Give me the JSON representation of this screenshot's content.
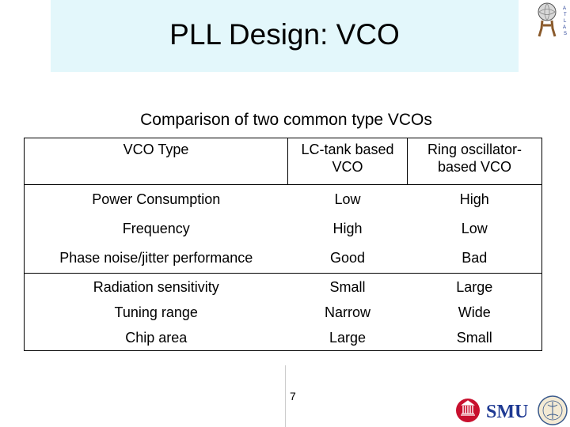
{
  "title": "PLL Design: VCO",
  "subtitle": "Comparison of two common type VCOs",
  "table": {
    "columns": [
      "VCO Type",
      "LC-tank based VCO",
      "Ring oscillator-based VCO"
    ],
    "header_lines": [
      [
        "VCO Type"
      ],
      [
        "LC-tank based",
        "VCO"
      ],
      [
        "Ring oscillator-",
        "based VCO"
      ]
    ],
    "rows": [
      [
        "Power Consumption",
        "Low",
        "High"
      ],
      [
        "Frequency",
        "High",
        "Low"
      ],
      [
        "Phase noise/jitter performance",
        "Good",
        "Bad"
      ],
      [
        "Radiation sensitivity",
        "Small",
        "Large"
      ],
      [
        "Tuning range",
        "Narrow",
        "Wide"
      ],
      [
        "Chip area",
        "Large",
        "Small"
      ]
    ]
  },
  "page_number": "7",
  "logos": {
    "top_right": "atlas-logo",
    "bottom_right": "smu-logo",
    "smu_text": "SMU",
    "atlas_letters": [
      "A",
      "T",
      "L",
      "A",
      "S"
    ]
  },
  "colors": {
    "title_background": "#e3f7fb",
    "smu_red": "#c8102e",
    "smu_blue": "#1f3a93"
  }
}
